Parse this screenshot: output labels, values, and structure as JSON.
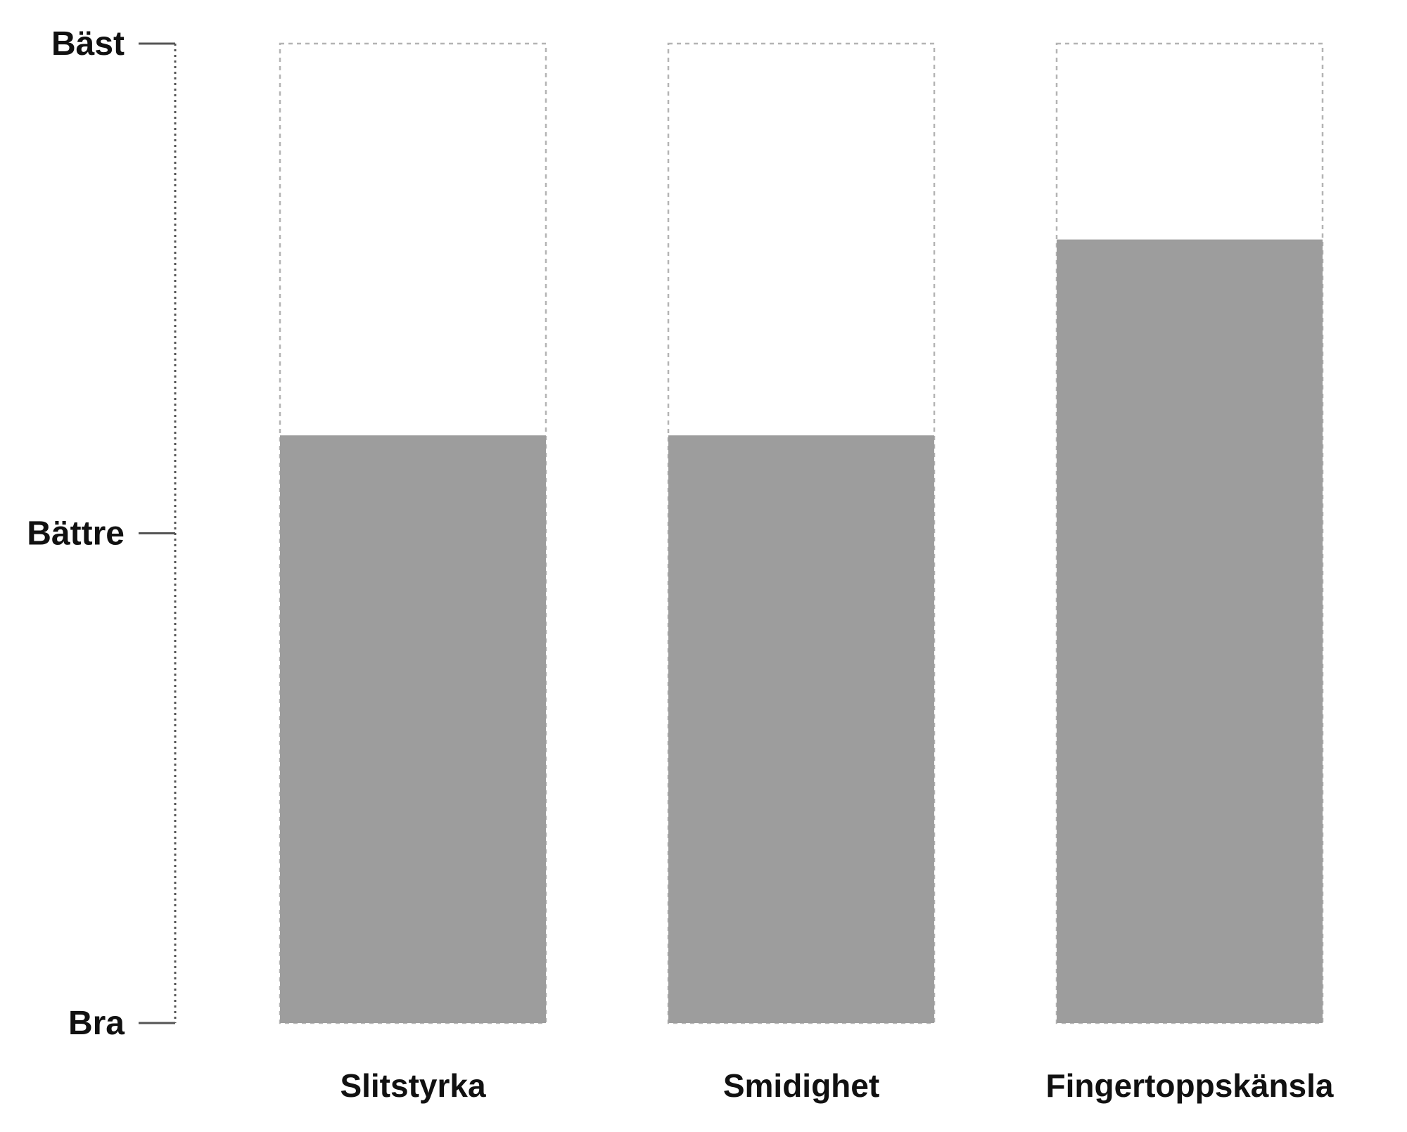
{
  "chart_data": {
    "type": "bar",
    "title": "",
    "xlabel": "",
    "ylabel": "",
    "y_tick_labels": [
      "Bra",
      "Bättre",
      "Bäst"
    ],
    "ylim": [
      0,
      2
    ],
    "categories": [
      "Slitstyrka",
      "Smidighet",
      "Fingertoppskänsla"
    ],
    "values": [
      1.2,
      1.2,
      1.6
    ],
    "max_outline": 2,
    "grid": false,
    "legend": "none",
    "colors": {
      "bar": "#9d9d9d",
      "outline": "#b4b4b4",
      "axis": "#555555",
      "text": "#111111"
    }
  }
}
